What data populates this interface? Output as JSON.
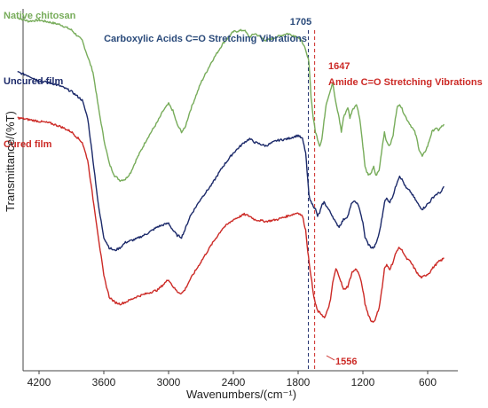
{
  "chart_data": {
    "type": "line",
    "xlabel": "Wavenumbers/(cm⁻¹)",
    "ylabel": "Transmittance/(%T)",
    "xlim": [
      4400,
      450
    ],
    "x_reversed": true,
    "grid": false,
    "x_ticks": [
      {
        "value": 4200,
        "label": "4200"
      },
      {
        "value": 3600,
        "label": "3600"
      },
      {
        "value": 3000,
        "label": "3000"
      },
      {
        "value": 2400,
        "label": "2400"
      },
      {
        "value": 1800,
        "label": "1800"
      },
      {
        "value": 1200,
        "label": "1200"
      },
      {
        "value": 600,
        "label": "600"
      }
    ],
    "series": [
      {
        "name": "Native chitosan",
        "color": "#77ac5a",
        "points": [
          [
            4400,
            0.985
          ],
          [
            4300,
            0.975
          ],
          [
            4200,
            0.978
          ],
          [
            4100,
            0.972
          ],
          [
            4000,
            0.965
          ],
          [
            3900,
            0.95
          ],
          [
            3800,
            0.92
          ],
          [
            3700,
            0.83
          ],
          [
            3650,
            0.73
          ],
          [
            3600,
            0.64
          ],
          [
            3550,
            0.57
          ],
          [
            3500,
            0.535
          ],
          [
            3450,
            0.522
          ],
          [
            3400,
            0.525
          ],
          [
            3350,
            0.545
          ],
          [
            3300,
            0.58
          ],
          [
            3200,
            0.64
          ],
          [
            3100,
            0.69
          ],
          [
            3050,
            0.72
          ],
          [
            3000,
            0.74
          ],
          [
            2960,
            0.72
          ],
          [
            2920,
            0.68
          ],
          [
            2880,
            0.66
          ],
          [
            2850,
            0.67
          ],
          [
            2800,
            0.72
          ],
          [
            2700,
            0.8
          ],
          [
            2600,
            0.86
          ],
          [
            2500,
            0.91
          ],
          [
            2400,
            0.945
          ],
          [
            2300,
            0.95
          ],
          [
            2250,
            0.93
          ],
          [
            2200,
            0.94
          ],
          [
            2100,
            0.92
          ],
          [
            2000,
            0.93
          ],
          [
            1900,
            0.94
          ],
          [
            1800,
            0.93
          ],
          [
            1750,
            0.91
          ],
          [
            1720,
            0.88
          ],
          [
            1700,
            0.86
          ],
          [
            1680,
            0.76
          ],
          [
            1660,
            0.7
          ],
          [
            1640,
            0.66
          ],
          [
            1620,
            0.64
          ],
          [
            1600,
            0.62
          ],
          [
            1580,
            0.64
          ],
          [
            1560,
            0.69
          ],
          [
            1540,
            0.74
          ],
          [
            1500,
            0.78
          ],
          [
            1480,
            0.8
          ],
          [
            1450,
            0.74
          ],
          [
            1420,
            0.7
          ],
          [
            1400,
            0.66
          ],
          [
            1380,
            0.7
          ],
          [
            1340,
            0.73
          ],
          [
            1320,
            0.7
          ],
          [
            1300,
            0.72
          ],
          [
            1260,
            0.74
          ],
          [
            1230,
            0.7
          ],
          [
            1200,
            0.62
          ],
          [
            1180,
            0.56
          ],
          [
            1150,
            0.535
          ],
          [
            1120,
            0.545
          ],
          [
            1100,
            0.56
          ],
          [
            1080,
            0.535
          ],
          [
            1050,
            0.55
          ],
          [
            1020,
            0.62
          ],
          [
            1000,
            0.66
          ],
          [
            980,
            0.63
          ],
          [
            950,
            0.62
          ],
          [
            920,
            0.65
          ],
          [
            900,
            0.7
          ],
          [
            880,
            0.73
          ],
          [
            860,
            0.74
          ],
          [
            830,
            0.72
          ],
          [
            800,
            0.7
          ],
          [
            760,
            0.68
          ],
          [
            720,
            0.66
          ],
          [
            700,
            0.64
          ],
          [
            680,
            0.61
          ],
          [
            650,
            0.59
          ],
          [
            630,
            0.6
          ],
          [
            600,
            0.62
          ],
          [
            580,
            0.64
          ],
          [
            560,
            0.66
          ],
          [
            530,
            0.67
          ],
          [
            500,
            0.665
          ],
          [
            470,
            0.675
          ],
          [
            450,
            0.68
          ]
        ]
      },
      {
        "name": "Uncured film",
        "color": "#1c2a6a",
        "points": [
          [
            4400,
            0.83
          ],
          [
            4300,
            0.82
          ],
          [
            4200,
            0.805
          ],
          [
            4100,
            0.8
          ],
          [
            4000,
            0.79
          ],
          [
            3900,
            0.775
          ],
          [
            3800,
            0.75
          ],
          [
            3750,
            0.7
          ],
          [
            3700,
            0.58
          ],
          [
            3650,
            0.45
          ],
          [
            3600,
            0.36
          ],
          [
            3550,
            0.33
          ],
          [
            3500,
            0.322
          ],
          [
            3450,
            0.33
          ],
          [
            3400,
            0.345
          ],
          [
            3300,
            0.355
          ],
          [
            3200,
            0.37
          ],
          [
            3100,
            0.39
          ],
          [
            3050,
            0.395
          ],
          [
            3000,
            0.4
          ],
          [
            2960,
            0.38
          ],
          [
            2920,
            0.365
          ],
          [
            2880,
            0.36
          ],
          [
            2850,
            0.38
          ],
          [
            2800,
            0.42
          ],
          [
            2700,
            0.47
          ],
          [
            2600,
            0.51
          ],
          [
            2500,
            0.56
          ],
          [
            2400,
            0.6
          ],
          [
            2300,
            0.63
          ],
          [
            2250,
            0.64
          ],
          [
            2200,
            0.63
          ],
          [
            2100,
            0.62
          ],
          [
            2000,
            0.635
          ],
          [
            1900,
            0.64
          ],
          [
            1800,
            0.65
          ],
          [
            1760,
            0.64
          ],
          [
            1730,
            0.6
          ],
          [
            1710,
            0.52
          ],
          [
            1700,
            0.48
          ],
          [
            1680,
            0.46
          ],
          [
            1660,
            0.45
          ],
          [
            1640,
            0.44
          ],
          [
            1620,
            0.42
          ],
          [
            1600,
            0.43
          ],
          [
            1580,
            0.45
          ],
          [
            1560,
            0.46
          ],
          [
            1540,
            0.45
          ],
          [
            1500,
            0.43
          ],
          [
            1480,
            0.42
          ],
          [
            1450,
            0.4
          ],
          [
            1420,
            0.39
          ],
          [
            1400,
            0.4
          ],
          [
            1380,
            0.41
          ],
          [
            1340,
            0.42
          ],
          [
            1320,
            0.44
          ],
          [
            1300,
            0.46
          ],
          [
            1260,
            0.46
          ],
          [
            1230,
            0.44
          ],
          [
            1200,
            0.4
          ],
          [
            1180,
            0.36
          ],
          [
            1150,
            0.34
          ],
          [
            1120,
            0.33
          ],
          [
            1100,
            0.33
          ],
          [
            1080,
            0.34
          ],
          [
            1050,
            0.37
          ],
          [
            1020,
            0.42
          ],
          [
            1000,
            0.46
          ],
          [
            980,
            0.47
          ],
          [
            950,
            0.46
          ],
          [
            920,
            0.48
          ],
          [
            900,
            0.5
          ],
          [
            880,
            0.52
          ],
          [
            860,
            0.535
          ],
          [
            830,
            0.52
          ],
          [
            800,
            0.5
          ],
          [
            760,
            0.49
          ],
          [
            720,
            0.47
          ],
          [
            700,
            0.46
          ],
          [
            680,
            0.45
          ],
          [
            650,
            0.44
          ],
          [
            630,
            0.445
          ],
          [
            600,
            0.455
          ],
          [
            580,
            0.46
          ],
          [
            560,
            0.47
          ],
          [
            530,
            0.48
          ],
          [
            500,
            0.485
          ],
          [
            470,
            0.49
          ],
          [
            450,
            0.505
          ]
        ]
      },
      {
        "name": "Cured film",
        "color": "#cc2a26",
        "points": [
          [
            4400,
            0.7
          ],
          [
            4300,
            0.695
          ],
          [
            4200,
            0.69
          ],
          [
            4100,
            0.685
          ],
          [
            4000,
            0.675
          ],
          [
            3900,
            0.66
          ],
          [
            3800,
            0.63
          ],
          [
            3750,
            0.58
          ],
          [
            3700,
            0.47
          ],
          [
            3650,
            0.36
          ],
          [
            3600,
            0.25
          ],
          [
            3550,
            0.19
          ],
          [
            3500,
            0.175
          ],
          [
            3450,
            0.17
          ],
          [
            3400,
            0.175
          ],
          [
            3300,
            0.19
          ],
          [
            3200,
            0.2
          ],
          [
            3100,
            0.21
          ],
          [
            3050,
            0.225
          ],
          [
            3000,
            0.24
          ],
          [
            2960,
            0.22
          ],
          [
            2920,
            0.205
          ],
          [
            2880,
            0.2
          ],
          [
            2850,
            0.21
          ],
          [
            2800,
            0.24
          ],
          [
            2700,
            0.29
          ],
          [
            2600,
            0.34
          ],
          [
            2500,
            0.385
          ],
          [
            2400,
            0.41
          ],
          [
            2300,
            0.425
          ],
          [
            2250,
            0.42
          ],
          [
            2200,
            0.41
          ],
          [
            2100,
            0.405
          ],
          [
            2000,
            0.41
          ],
          [
            1900,
            0.42
          ],
          [
            1800,
            0.43
          ],
          [
            1760,
            0.42
          ],
          [
            1730,
            0.38
          ],
          [
            1710,
            0.32
          ],
          [
            1700,
            0.29
          ],
          [
            1680,
            0.25
          ],
          [
            1660,
            0.2
          ],
          [
            1640,
            0.17
          ],
          [
            1620,
            0.15
          ],
          [
            1600,
            0.145
          ],
          [
            1580,
            0.14
          ],
          [
            1556,
            0.13
          ],
          [
            1540,
            0.14
          ],
          [
            1500,
            0.18
          ],
          [
            1480,
            0.23
          ],
          [
            1450,
            0.27
          ],
          [
            1420,
            0.25
          ],
          [
            1400,
            0.23
          ],
          [
            1380,
            0.21
          ],
          [
            1340,
            0.22
          ],
          [
            1320,
            0.24
          ],
          [
            1300,
            0.26
          ],
          [
            1260,
            0.27
          ],
          [
            1230,
            0.25
          ],
          [
            1200,
            0.21
          ],
          [
            1180,
            0.17
          ],
          [
            1150,
            0.14
          ],
          [
            1120,
            0.12
          ],
          [
            1100,
            0.12
          ],
          [
            1080,
            0.13
          ],
          [
            1050,
            0.16
          ],
          [
            1020,
            0.22
          ],
          [
            1000,
            0.27
          ],
          [
            980,
            0.28
          ],
          [
            950,
            0.27
          ],
          [
            920,
            0.29
          ],
          [
            900,
            0.31
          ],
          [
            880,
            0.325
          ],
          [
            860,
            0.33
          ],
          [
            830,
            0.32
          ],
          [
            800,
            0.3
          ],
          [
            760,
            0.29
          ],
          [
            720,
            0.27
          ],
          [
            700,
            0.26
          ],
          [
            680,
            0.25
          ],
          [
            650,
            0.245
          ],
          [
            630,
            0.25
          ],
          [
            600,
            0.255
          ],
          [
            580,
            0.26
          ],
          [
            560,
            0.27
          ],
          [
            530,
            0.28
          ],
          [
            500,
            0.29
          ],
          [
            470,
            0.295
          ],
          [
            450,
            0.3
          ]
        ]
      }
    ],
    "annotations": [
      {
        "id": "ann-1705",
        "wavenumber": 1705,
        "number": "1705",
        "text": "Carboxylic Acids C=O Stretching Vibrations",
        "color": "#2a4a7a",
        "line_color": "#1c2a6a"
      },
      {
        "id": "ann-1647",
        "wavenumber": 1647,
        "number": "1647",
        "text": "Amide C=O Stretching Vibrations",
        "color": "#cc2a26",
        "line_color": "#cc2a26"
      },
      {
        "id": "ann-1556",
        "wavenumber": 1556,
        "number": "1556",
        "color": "#cc2a26"
      }
    ]
  }
}
